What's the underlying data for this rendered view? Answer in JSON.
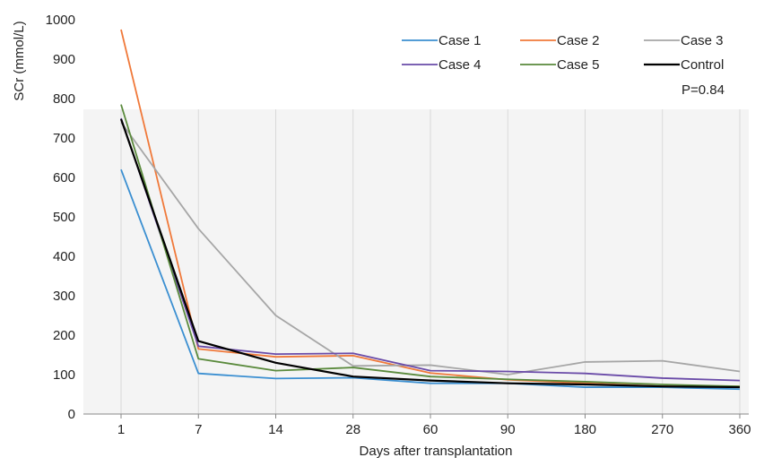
{
  "chart_data": {
    "type": "line",
    "title": "",
    "xlabel": "Days after transplantation",
    "ylabel": "SCr (mmol/L)",
    "categories": [
      "1",
      "7",
      "14",
      "28",
      "60",
      "90",
      "180",
      "270",
      "360"
    ],
    "ylim": [
      0,
      1000
    ],
    "yticks": [
      "0",
      "100",
      "200",
      "300",
      "400",
      "500",
      "600",
      "700",
      "800",
      "900",
      "1000"
    ],
    "grid": false,
    "legend_position": "top-right",
    "annotation": "P=0.84",
    "series": [
      {
        "name": "Case 1",
        "color": "#3B8FD1",
        "values": [
          620,
          103,
          90,
          92,
          78,
          78,
          68,
          68,
          63
        ]
      },
      {
        "name": "Case 2",
        "color": "#F0793A",
        "values": [
          975,
          165,
          145,
          148,
          104,
          87,
          78,
          70,
          70
        ]
      },
      {
        "name": "Case 3",
        "color": "#A6A6A6",
        "values": [
          740,
          470,
          250,
          122,
          124,
          100,
          132,
          135,
          108
        ]
      },
      {
        "name": "Case 4",
        "color": "#6A4BA8",
        "values": [
          750,
          172,
          152,
          154,
          110,
          108,
          103,
          91,
          85
        ]
      },
      {
        "name": "Case 5",
        "color": "#5A8A3C",
        "values": [
          785,
          140,
          110,
          118,
          95,
          88,
          82,
          75,
          70
        ]
      },
      {
        "name": "Control",
        "color": "#000000",
        "values": [
          748,
          185,
          130,
          95,
          85,
          78,
          75,
          70,
          68
        ]
      }
    ]
  }
}
